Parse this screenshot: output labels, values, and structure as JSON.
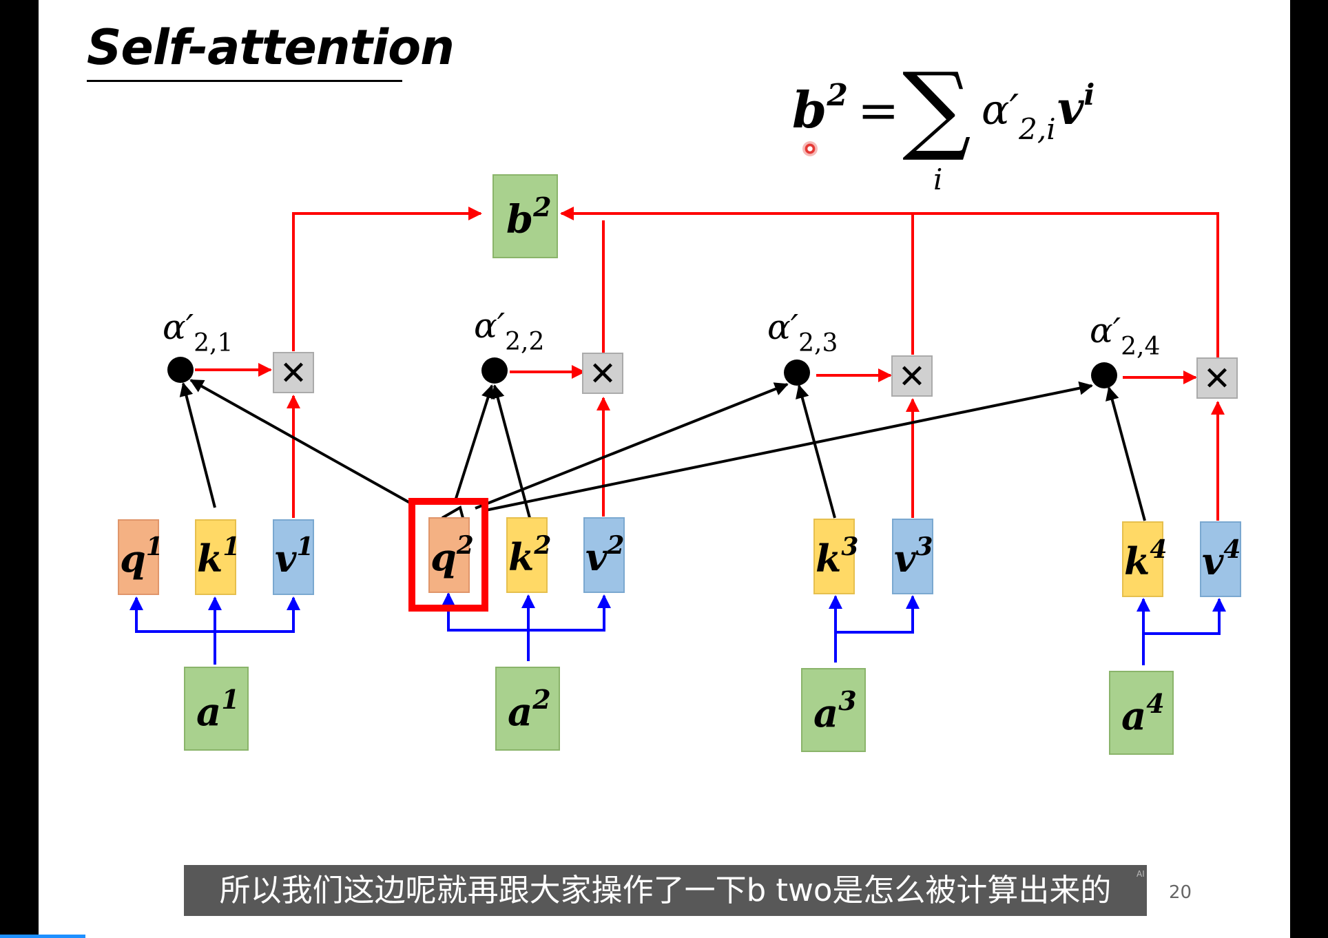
{
  "slide": {
    "title": "Self-attention",
    "page_number": "20"
  },
  "formula": {
    "lhs_base": "b",
    "lhs_sup": "2",
    "equals": "=",
    "sum": "∑",
    "sum_index": "i",
    "alpha": "α′",
    "alpha_sub": "2,i",
    "v": "v",
    "v_sup": "i"
  },
  "output": {
    "base": "b",
    "sup": "2"
  },
  "alphas": [
    {
      "base": "α′",
      "sub": "2,1"
    },
    {
      "base": "α′",
      "sub": "2,2"
    },
    {
      "base": "α′",
      "sub": "2,3"
    },
    {
      "base": "α′",
      "sub": "2,4"
    }
  ],
  "multiply_symbol": "✕",
  "vectors": {
    "q1": {
      "base": "q",
      "sup": "1"
    },
    "k1": {
      "base": "k",
      "sup": "1"
    },
    "v1": {
      "base": "v",
      "sup": "1"
    },
    "q2": {
      "base": "q",
      "sup": "2"
    },
    "k2": {
      "base": "k",
      "sup": "2"
    },
    "v2": {
      "base": "v",
      "sup": "2"
    },
    "k3": {
      "base": "k",
      "sup": "3"
    },
    "v3": {
      "base": "v",
      "sup": "3"
    },
    "k4": {
      "base": "k",
      "sup": "4"
    },
    "v4": {
      "base": "v",
      "sup": "4"
    }
  },
  "inputs": [
    {
      "base": "a",
      "sup": "1"
    },
    {
      "base": "a",
      "sup": "2"
    },
    {
      "base": "a",
      "sup": "3"
    },
    {
      "base": "a",
      "sup": "4"
    }
  ],
  "subtitle": "所以我们这边呢就再跟大家操作了一下b two是怎么被计算出来的",
  "ai_mark": "AI",
  "colors": {
    "q_fill": "#f4b183",
    "k_fill": "#ffd966",
    "v_fill": "#9dc3e6",
    "a_fill": "#a9d18e",
    "b_fill": "#a9d18e",
    "red_arrow": "#ff0000",
    "blue_arrow": "#0000ff",
    "highlight": "#ff0000",
    "multiply_fill": "#d0d0d0"
  }
}
